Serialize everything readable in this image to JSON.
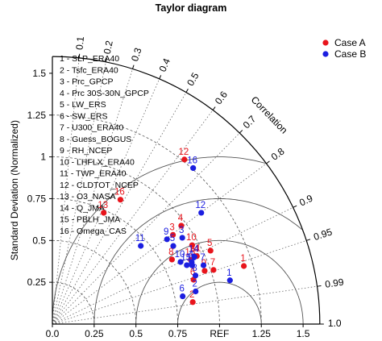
{
  "chart_data": {
    "type": "scatter",
    "subtype": "taylor-diagram",
    "title": "Taylor diagram",
    "ylabel": "Standard Deviation (Normalized)",
    "correlation_label": "Correlation",
    "ref_label": "REF",
    "std_range": [
      0,
      1.6
    ],
    "x_ticks": [
      {
        "v": 0,
        "label": "0.0"
      },
      {
        "v": 0.25,
        "label": "0.25"
      },
      {
        "v": 0.5,
        "label": "0.5"
      },
      {
        "v": 0.75,
        "label": "0.75"
      },
      {
        "v": 1.25,
        "label": "1.25"
      },
      {
        "v": 1.5,
        "label": "1.5"
      }
    ],
    "y_ticks": [
      {
        "v": 0.25,
        "label": "0.25"
      },
      {
        "v": 0.5,
        "label": "0.5"
      },
      {
        "v": 0.75,
        "label": "0.75"
      },
      {
        "v": 1.0,
        "label": "1"
      },
      {
        "v": 1.25,
        "label": "1.25"
      },
      {
        "v": 1.5,
        "label": "1.5"
      }
    ],
    "correlation_ticks": [
      "0.1",
      "0.2",
      "0.3",
      "0.4",
      "0.5",
      "0.6",
      "0.7",
      "0.8",
      "0.9",
      "0.95",
      "0.99",
      "1.0"
    ],
    "correlation_values": [
      0.1,
      0.2,
      0.3,
      0.4,
      0.5,
      0.6,
      0.7,
      0.8,
      0.9,
      0.95,
      0.99,
      1.0
    ],
    "legend_position": "top-right",
    "legend": [
      {
        "name": "Case A",
        "color": "#e8141c"
      },
      {
        "name": "Case B",
        "color": "#1b1ee0"
      }
    ],
    "variables": [
      "1 - SLP_ERA40",
      "2 - Tsfc_ERA40",
      "3 - Prc_GPCP",
      "4 - Prc 30S-30N_GPCP",
      "5 - LW_ERS",
      "6 - SW_ERS",
      "7 - U300_ERA40",
      "8 - Guess_BOGUS",
      "9 - RH_NCEP",
      "10 - LHFLX_ERA40",
      "11 - TWP_ERA40",
      "12 - CLDTOT_NCEP",
      "13 - O3_NASA",
      "14 - Q_JMA",
      "15 - PBLH_JMA",
      "16 - Omega_CAS"
    ],
    "series": [
      {
        "name": "Case A",
        "color": "#e8141c",
        "points": [
          {
            "label": "1",
            "std": 1.197,
            "corr": 0.957
          },
          {
            "label": "2",
            "std": 0.85,
            "corr": 0.988
          },
          {
            "label": "3",
            "std": 0.897,
            "corr": 0.804
          },
          {
            "label": "4",
            "std": 0.97,
            "corr": 0.795
          },
          {
            "label": "5",
            "std": 1.043,
            "corr": 0.907
          },
          {
            "label": "6",
            "std": 0.885,
            "corr": 0.954
          },
          {
            "label": "7",
            "std": 1.017,
            "corr": 0.948
          },
          {
            "label": "8",
            "std": 0.813,
            "corr": 0.88
          },
          {
            "label": "9",
            "std": 0.965,
            "corr": 0.944
          },
          {
            "label": "10",
            "std": 0.96,
            "corr": 0.871
          },
          {
            "label": "11",
            "std": 0.955,
            "corr": 0.905
          },
          {
            "label": "12",
            "std": 1.262,
            "corr": 0.626
          },
          {
            "label": "13",
            "std": 0.733,
            "corr": 0.419
          },
          {
            "label": "14",
            "std": 0.945,
            "corr": 0.903
          },
          {
            "label": "15",
            "std": 0.913,
            "corr": 0.907
          },
          {
            "label": "16",
            "std": 0.848,
            "corr": 0.48
          }
        ]
      },
      {
        "name": "Case B",
        "color": "#1b1ee0",
        "points": [
          {
            "label": "1",
            "std": 1.094,
            "corr": 0.971
          },
          {
            "label": "2",
            "std": 0.879,
            "corr": 0.975
          },
          {
            "label": "3",
            "std": 0.933,
            "corr": 0.833
          },
          {
            "label": "4",
            "std": 0.912,
            "corr": 0.914
          },
          {
            "label": "5",
            "std": 0.861,
            "corr": 0.84
          },
          {
            "label": "6",
            "std": 0.797,
            "corr": 0.978
          },
          {
            "label": "7",
            "std": 0.97,
            "corr": 0.932
          },
          {
            "label": "8",
            "std": 0.904,
            "corr": 0.947
          },
          {
            "label": "9",
            "std": 0.853,
            "corr": 0.804
          },
          {
            "label": "10",
            "std": 0.852,
            "corr": 0.9
          },
          {
            "label": "11",
            "std": 0.706,
            "corr": 0.749
          },
          {
            "label": "12",
            "std": 1.112,
            "corr": 0.801
          },
          {
            "label": "13",
            "std": 0.907,
            "corr": 0.922
          },
          {
            "label": "14",
            "std": 0.94,
            "corr": 0.904
          },
          {
            "label": "15",
            "std": 0.878,
            "corr": 0.916
          },
          {
            "label": "16",
            "std": 1.257,
            "corr": 0.67
          }
        ]
      }
    ]
  }
}
